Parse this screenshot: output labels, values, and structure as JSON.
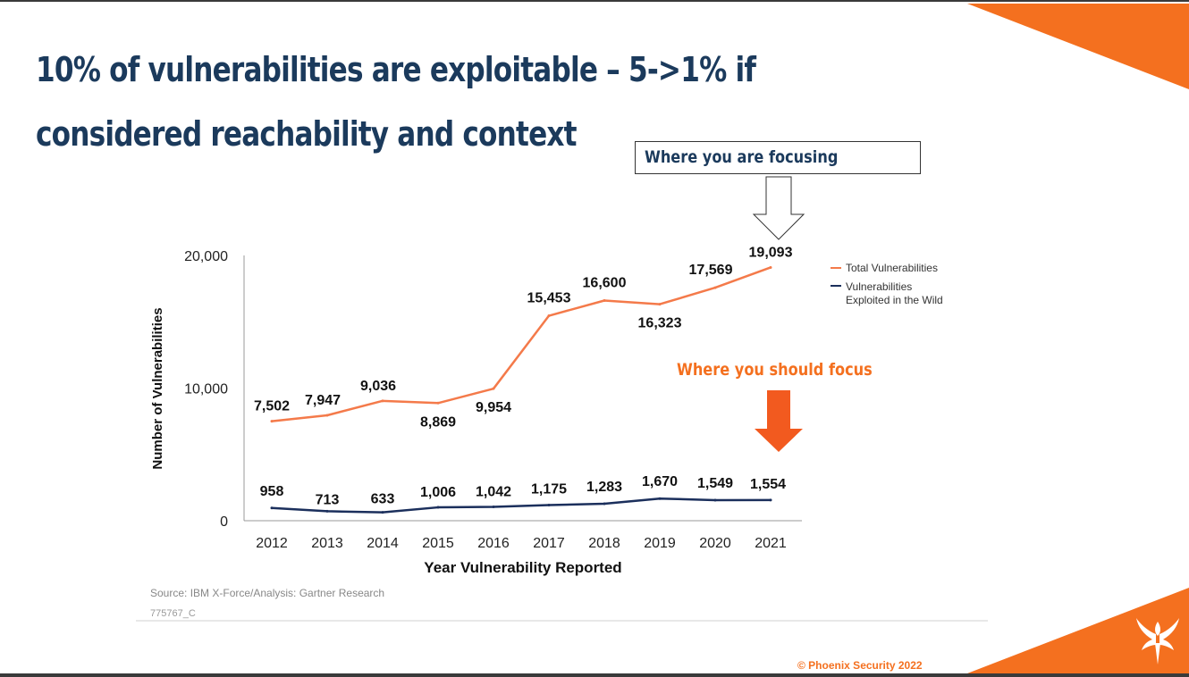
{
  "slide": {
    "title": "10% of vulnerabilities are exploitable – 5->1% if considered reachability and context",
    "callout_focusing": "Where you are focusing",
    "callout_should": "Where you should focus",
    "copyright": "© Phoenix Security 2022"
  },
  "colors": {
    "title": "#1b3a5c",
    "accent": "#f4701f",
    "total_series": "#f47a4a",
    "exploited_series": "#1b2f5c",
    "arrow_fill": "#f25a1f"
  },
  "icons": {
    "logo": "phoenix-icon",
    "down_arrow_outline": "down-arrow-outline-icon",
    "down_arrow_filled": "down-arrow-filled-icon"
  },
  "chart_data": {
    "type": "line",
    "x": [
      "2012",
      "2013",
      "2014",
      "2015",
      "2016",
      "2017",
      "2018",
      "2019",
      "2020",
      "2021"
    ],
    "x_tick_labels": [
      "2012",
      "2013",
      "2014",
      "2015",
      "2016",
      "2017",
      "2018",
      "2019",
      "2020",
      "2021"
    ],
    "series": [
      {
        "name": "Total Vulnerabilities",
        "values": [
          7502,
          7947,
          9036,
          8869,
          9954,
          15453,
          16600,
          16323,
          17569,
          19093
        ],
        "labels": [
          "7,502",
          "7,947",
          "9,036",
          "8,869",
          "9,954",
          "15,453",
          "16,600",
          "16,323",
          "17,569",
          "19,093"
        ]
      },
      {
        "name": "Vulnerabilities Exploited in the Wild",
        "values": [
          958,
          713,
          633,
          1006,
          1042,
          1175,
          1283,
          1670,
          1549,
          1554
        ],
        "labels": [
          "958",
          "713",
          "633",
          "1,006",
          "1,042",
          "1,175",
          "1,283",
          "1,670",
          "1,549",
          "1,554"
        ]
      }
    ],
    "legend": {
      "position": "right",
      "entries": [
        "Total Vulnerabilities",
        "Vulnerabilities",
        "Exploited in the Wild"
      ]
    },
    "ylabel": "Number of Vulnerabilities",
    "xlabel": "Year Vulnerability Reported",
    "ylim": [
      0,
      20000
    ],
    "y_ticks": [
      0,
      10000,
      20000
    ],
    "y_tick_labels": [
      "0",
      "10,000",
      "20,000"
    ],
    "grid": false,
    "source": "Source: IBM X-Force/Analysis: Gartner Research",
    "code": "775767_C"
  }
}
